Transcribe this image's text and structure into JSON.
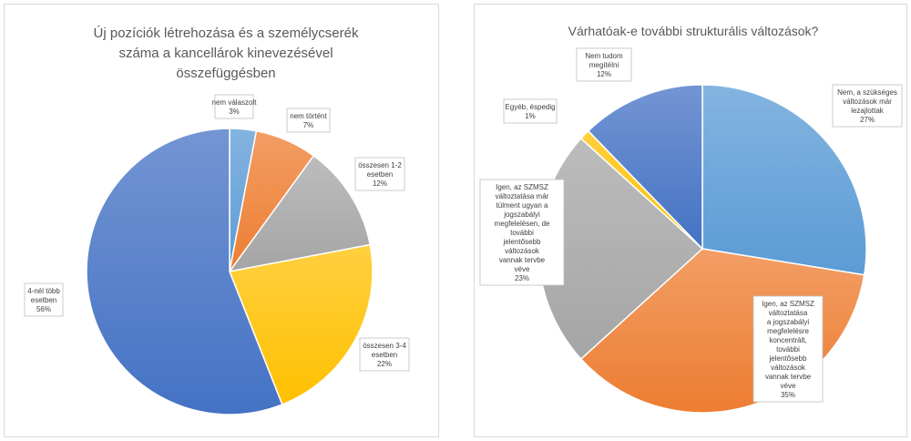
{
  "chart_data": [
    {
      "type": "pie",
      "title": [
        "Új pozíciók létrehozása és a személycserék",
        "száma a kancellárok kinevezésével",
        "összefüggésben"
      ],
      "slices": [
        {
          "label": [
            "nem válaszolt",
            "3%"
          ],
          "value": 3,
          "color": "#5b9bd5"
        },
        {
          "label": [
            "nem történt",
            "7%"
          ],
          "value": 7,
          "color": "#ed7d31"
        },
        {
          "label": [
            "összesen 1-2",
            "esetben",
            "12%"
          ],
          "value": 12,
          "color": "#a5a5a5"
        },
        {
          "label": [
            "összesen 3-4",
            "esetben",
            "22%"
          ],
          "value": 22,
          "color": "#ffc000"
        },
        {
          "label": [
            "4-nél több",
            "esetben",
            "56%"
          ],
          "value": 56,
          "color": "#4472c4"
        }
      ]
    },
    {
      "type": "pie",
      "title": [
        "Várhatóak-e további strukturális változások?"
      ],
      "slices": [
        {
          "label": [
            "Nem, a szükséges",
            "változások már",
            "lezajlottak",
            "27%"
          ],
          "value": 27,
          "color": "#5b9bd5"
        },
        {
          "label": [
            "Igen, az SZMSZ",
            "változtatása",
            "a jogszabályi",
            "megfelelésre",
            "koncentrált,",
            "további",
            "jelentősebb",
            "változások",
            "vannak tervbe",
            "véve",
            "35%"
          ],
          "value": 35,
          "color": "#ed7d31"
        },
        {
          "label": [
            "Igen, az SZMSZ",
            "változtatása már",
            "túlment ugyan a",
            "jogszabályi",
            "megfelelésen, de",
            "további",
            "jelentősebb",
            "változások",
            "vannak tervbe",
            "véve",
            "23%"
          ],
          "value": 23,
          "color": "#a5a5a5"
        },
        {
          "label": [
            "Egyéb, éspedig",
            "1%"
          ],
          "value": 1,
          "color": "#ffc000"
        },
        {
          "label": [
            "Nem tudom",
            "megítélni",
            "12%"
          ],
          "value": 12,
          "color": "#4472c4"
        }
      ]
    }
  ]
}
